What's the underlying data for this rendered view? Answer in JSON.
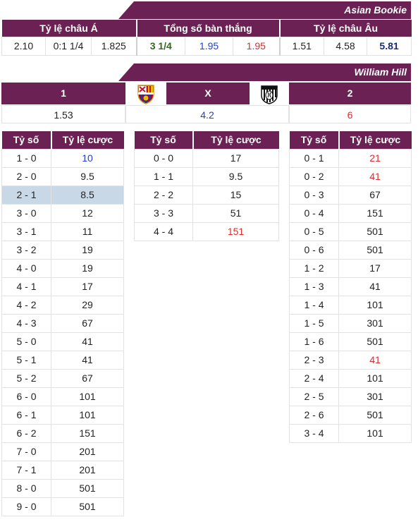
{
  "colors": {
    "header_bg": "#6b2154",
    "blue": "#1f3fd6",
    "red": "#e02b2b",
    "green": "#2e6b1f",
    "navy": "#1a2a7a",
    "highlight": "#c8d8e6"
  },
  "asian_bookie": {
    "banner": "Asian Bookie",
    "groups": [
      "Tỷ lệ châu Á",
      "Tổng số bàn thắng",
      "Tỷ lệ châu Âu"
    ],
    "values": [
      {
        "text": "2.10",
        "color": ""
      },
      {
        "text": "0:1 1/4",
        "color": ""
      },
      {
        "text": "1.825",
        "color": ""
      },
      {
        "text": "3 1/4",
        "color": "green",
        "bold": true
      },
      {
        "text": "1.95",
        "color": "blue"
      },
      {
        "text": "1.95",
        "color": "red"
      },
      {
        "text": "1.51",
        "color": ""
      },
      {
        "text": "4.58",
        "color": ""
      },
      {
        "text": "5.81",
        "color": "navy",
        "bold": true
      }
    ]
  },
  "william_hill": {
    "banner": "William Hill",
    "home_label": "1",
    "draw_label": "X",
    "away_label": "2",
    "home_logo": "barcelona-crest-icon",
    "away_logo": "juventus-crest-icon",
    "home_odds": "1.53",
    "draw_odds": "4.2",
    "away_odds": "6"
  },
  "score_tables": {
    "col_score": "Tỷ số",
    "col_odds": "Tỷ lệ cược",
    "home_wins": [
      {
        "score": "1 - 0",
        "odds": "10",
        "color": "blue"
      },
      {
        "score": "2 - 0",
        "odds": "9.5"
      },
      {
        "score": "2 - 1",
        "odds": "8.5",
        "highlight": true
      },
      {
        "score": "3 - 0",
        "odds": "12"
      },
      {
        "score": "3 - 1",
        "odds": "11"
      },
      {
        "score": "3 - 2",
        "odds": "19"
      },
      {
        "score": "4 - 0",
        "odds": "19"
      },
      {
        "score": "4 - 1",
        "odds": "17"
      },
      {
        "score": "4 - 2",
        "odds": "29"
      },
      {
        "score": "4 - 3",
        "odds": "67"
      },
      {
        "score": "5 - 0",
        "odds": "41"
      },
      {
        "score": "5 - 1",
        "odds": "41"
      },
      {
        "score": "5 - 2",
        "odds": "67"
      },
      {
        "score": "6 - 0",
        "odds": "101"
      },
      {
        "score": "6 - 1",
        "odds": "101"
      },
      {
        "score": "6 - 2",
        "odds": "151"
      },
      {
        "score": "7 - 0",
        "odds": "201"
      },
      {
        "score": "7 - 1",
        "odds": "201"
      },
      {
        "score": "8 - 0",
        "odds": "501"
      },
      {
        "score": "9 - 0",
        "odds": "501"
      }
    ],
    "draws": [
      {
        "score": "0 - 0",
        "odds": "17"
      },
      {
        "score": "1 - 1",
        "odds": "9.5"
      },
      {
        "score": "2 - 2",
        "odds": "15"
      },
      {
        "score": "3 - 3",
        "odds": "51"
      },
      {
        "score": "4 - 4",
        "odds": "151",
        "color": "red"
      }
    ],
    "away_wins": [
      {
        "score": "0 - 1",
        "odds": "21",
        "color": "red"
      },
      {
        "score": "0 - 2",
        "odds": "41",
        "color": "red"
      },
      {
        "score": "0 - 3",
        "odds": "67"
      },
      {
        "score": "0 - 4",
        "odds": "151"
      },
      {
        "score": "0 - 5",
        "odds": "501"
      },
      {
        "score": "0 - 6",
        "odds": "501"
      },
      {
        "score": "1 - 2",
        "odds": "17"
      },
      {
        "score": "1 - 3",
        "odds": "41"
      },
      {
        "score": "1 - 4",
        "odds": "101"
      },
      {
        "score": "1 - 5",
        "odds": "301"
      },
      {
        "score": "1 - 6",
        "odds": "501"
      },
      {
        "score": "2 - 3",
        "odds": "41",
        "color": "red"
      },
      {
        "score": "2 - 4",
        "odds": "101"
      },
      {
        "score": "2 - 5",
        "odds": "301"
      },
      {
        "score": "2 - 6",
        "odds": "501"
      },
      {
        "score": "3 - 4",
        "odds": "101"
      }
    ]
  }
}
